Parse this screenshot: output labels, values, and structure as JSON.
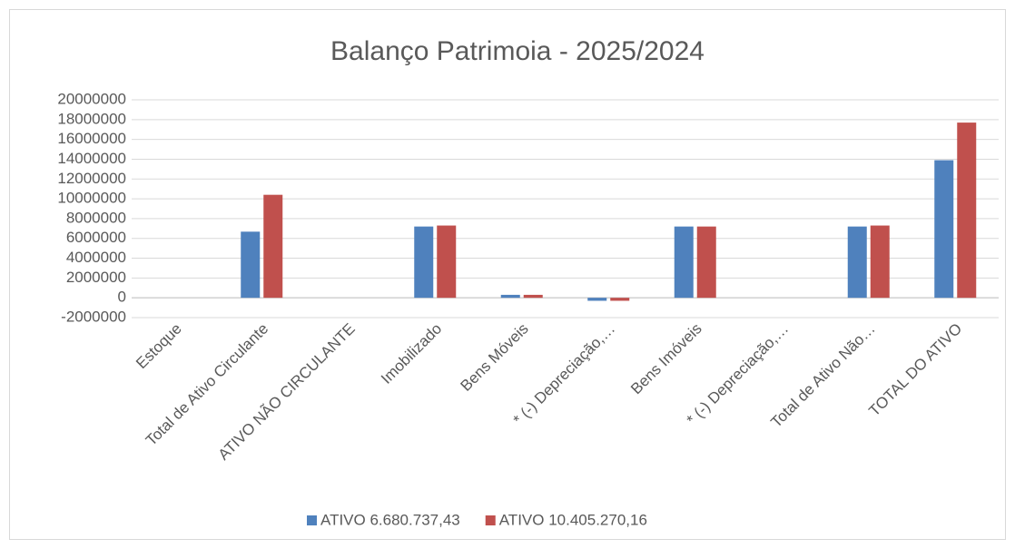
{
  "chart_data": {
    "type": "bar",
    "title": "Balanço Patrimoia - 2025/2024",
    "categories": [
      "Estoque",
      "Total de Ativo Circulante",
      "ATIVO NÃO CIRCULANTE",
      "Imobilizado",
      "Bens Móveis",
      "* (-) Depreciação,…",
      "Bens Imóveis",
      "* (-) Depreciação,…",
      "Total de Ativo Não…",
      "TOTAL DO ATIVO"
    ],
    "series": [
      {
        "name": "ATIVO 6.680.737,43",
        "color": "#4f81bd",
        "values": [
          0,
          6680737,
          0,
          7200000,
          300000,
          -300000,
          7200000,
          0,
          7200000,
          13900000
        ]
      },
      {
        "name": "ATIVO 10.405.270,16",
        "color": "#c0504d",
        "values": [
          0,
          10405270,
          0,
          7300000,
          300000,
          -300000,
          7200000,
          0,
          7300000,
          17700000
        ]
      }
    ],
    "ylim": [
      -2000000,
      20000000
    ],
    "yticks": [
      -2000000,
      0,
      2000000,
      4000000,
      6000000,
      8000000,
      10000000,
      12000000,
      14000000,
      16000000,
      18000000,
      20000000
    ],
    "grid": true,
    "legend": "bottom"
  }
}
